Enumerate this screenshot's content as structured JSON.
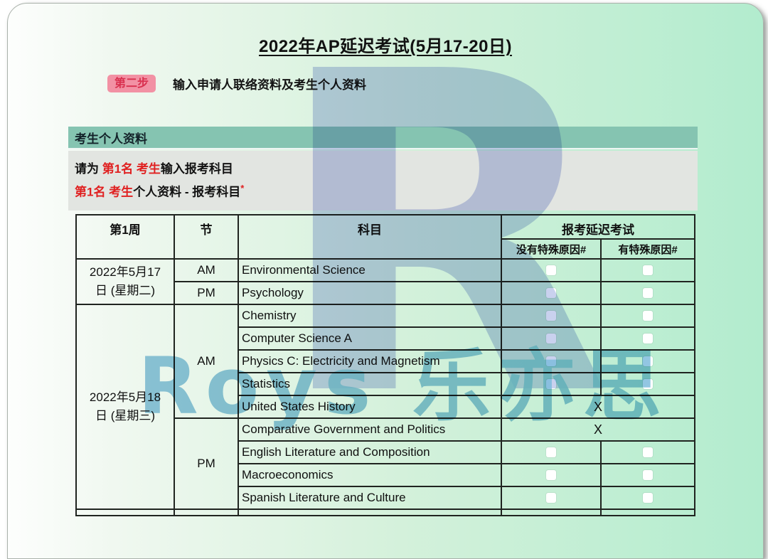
{
  "page": {
    "title": "2022年AP延迟考试(5月17-20日)",
    "step_badge": "第二步",
    "step_text": "输入申请人联络资料及考生个人资料",
    "section_header": "考生个人资料",
    "prompt": [
      {
        "text": "请为 ",
        "red": false
      },
      {
        "text": "第1名 考生",
        "red": true
      },
      {
        "text": "输入报考科目",
        "red": false
      }
    ],
    "subtitle": [
      {
        "text": "第1名 考生",
        "red": true
      },
      {
        "text": "个人资料 - 报考科目",
        "red": false
      }
    ],
    "required_mark": "*"
  },
  "watermark": {
    "logo_letter": "R",
    "text": "Roys 乐亦思"
  },
  "table": {
    "headers": {
      "week": "第1周",
      "session": "节",
      "subject": "科目",
      "delay_exam": "报考延迟考试",
      "no_special_reason": "没有特殊原因#",
      "special_reason": "有特殊原因#"
    },
    "x_mark": "X",
    "days": [
      {
        "date_line1": "2022年5月17",
        "date_line2": "日 (星期二)",
        "sessions": [
          {
            "label": "AM",
            "subjects": [
              {
                "name": "Environmental Science",
                "mark": "checkboxes"
              }
            ]
          },
          {
            "label": "PM",
            "subjects": [
              {
                "name": "Psychology",
                "mark": "checkboxes"
              }
            ]
          }
        ]
      },
      {
        "date_line1": "2022年5月18",
        "date_line2": "日 (星期三)",
        "sessions": [
          {
            "label": "AM",
            "subjects": [
              {
                "name": "Chemistry",
                "mark": "checkboxes"
              },
              {
                "name": "Computer Science A",
                "mark": "checkboxes"
              },
              {
                "name": "Physics C: Electricity and Magnetism",
                "mark": "checkboxes"
              },
              {
                "name": "Statistics",
                "mark": "checkboxes"
              },
              {
                "name": "United States History",
                "mark": "x"
              }
            ]
          },
          {
            "label": "PM",
            "subjects": [
              {
                "name": "Comparative Government and Politics",
                "mark": "x"
              },
              {
                "name": "English Literature and Composition",
                "mark": "checkboxes"
              },
              {
                "name": "Macroeconomics",
                "mark": "checkboxes"
              },
              {
                "name": "Spanish Literature and Culture",
                "mark": "checkboxes"
              }
            ]
          }
        ]
      }
    ]
  },
  "colors": {
    "accent_teal": "#85c4b1",
    "band_gray": "#e2e5e1",
    "badge_bg": "#f291a4",
    "badge_text": "#d9304f",
    "red": "#e02020",
    "border": "#202420",
    "x_gray": "#7c7c7c",
    "watermark_r": "#bac4ea",
    "watermark_text": "#7fbcdd"
  }
}
